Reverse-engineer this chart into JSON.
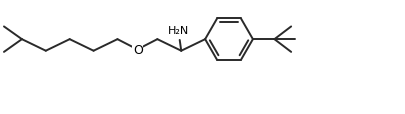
{
  "background_color": "#ffffff",
  "line_color": "#2a2a2a",
  "line_width": 1.4,
  "text_color": "#000000",
  "font_size": 7.5,
  "figsize": [
    4.06,
    1.15
  ],
  "dpi": 100,
  "nh2_label": "H₂N",
  "o_label": "O",
  "xlim": [
    0,
    10.5
  ],
  "ylim": [
    0,
    2.8
  ]
}
